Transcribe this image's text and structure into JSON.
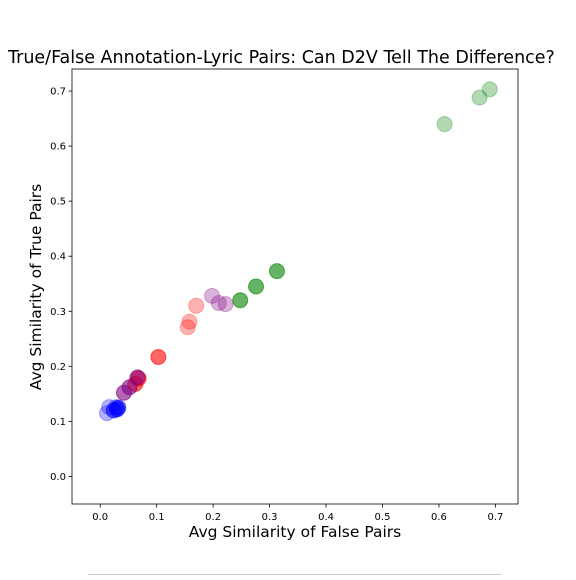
{
  "chart_data": {
    "type": "scatter",
    "title": "True/False Annotation-Lyric Pairs: Can D2V Tell The Difference?",
    "xlabel": "Avg Similarity of False Pairs",
    "ylabel": "Avg Similarity of True Pairs",
    "xlim": [
      -0.05,
      0.74
    ],
    "ylim": [
      -0.05,
      0.74
    ],
    "xticks": [
      "0.0",
      "0.1",
      "0.2",
      "0.3",
      "0.4",
      "0.5",
      "0.6",
      "0.7"
    ],
    "yticks": [
      "0.0",
      "0.1",
      "0.2",
      "0.3",
      "0.4",
      "0.5",
      "0.6",
      "0.7"
    ],
    "grid": false,
    "legend": false,
    "series": [
      {
        "color": "#008000",
        "opacity": 0.3,
        "points": [
          [
            0.61,
            0.64
          ],
          [
            0.672,
            0.688
          ],
          [
            0.69,
            0.703
          ]
        ]
      },
      {
        "color": "#008000",
        "opacity": 0.6,
        "points": [
          [
            0.248,
            0.32
          ],
          [
            0.276,
            0.345
          ],
          [
            0.313,
            0.373
          ]
        ]
      },
      {
        "color": "#800080",
        "opacity": 0.3,
        "points": [
          [
            0.198,
            0.328
          ],
          [
            0.21,
            0.315
          ],
          [
            0.222,
            0.313
          ]
        ]
      },
      {
        "color": "#ff0000",
        "opacity": 0.3,
        "points": [
          [
            0.155,
            0.271
          ],
          [
            0.158,
            0.281
          ],
          [
            0.17,
            0.31
          ]
        ]
      },
      {
        "color": "#ff0000",
        "opacity": 0.6,
        "points": [
          [
            0.062,
            0.168
          ],
          [
            0.068,
            0.178
          ],
          [
            0.103,
            0.217
          ]
        ]
      },
      {
        "color": "#800080",
        "opacity": 0.6,
        "points": [
          [
            0.042,
            0.152
          ],
          [
            0.052,
            0.162
          ],
          [
            0.066,
            0.18
          ]
        ]
      },
      {
        "color": "#0000ff",
        "opacity": 0.3,
        "points": [
          [
            0.012,
            0.115
          ],
          [
            0.016,
            0.126
          ],
          [
            0.028,
            0.126
          ]
        ]
      },
      {
        "color": "#0000ff",
        "opacity": 0.6,
        "points": [
          [
            0.024,
            0.12
          ],
          [
            0.03,
            0.122
          ],
          [
            0.032,
            0.125
          ]
        ]
      }
    ]
  }
}
